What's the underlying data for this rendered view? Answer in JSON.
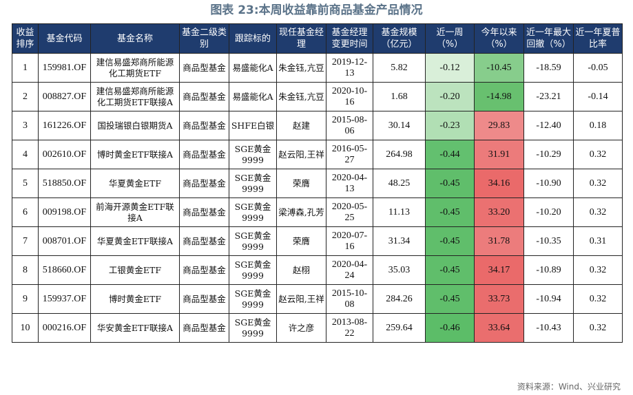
{
  "title": "图表 23:本周收益靠前商品基金产品情况",
  "headers": [
    "收益排序",
    "基金代码",
    "基金名称",
    "基金二级类别",
    "跟踪标的",
    "现任基金经理",
    "基金经理变更时间",
    "基金规模（亿元）",
    "近一周（%）",
    "今年以来（%）",
    "近一年最大回撤（%）",
    "近一年夏普比率"
  ],
  "rows": [
    {
      "rank": "1",
      "code": "159981.OF",
      "name": "建信易盛郑商所能源化工期货ETF",
      "category": "商品型基金",
      "tracking": "易盛能化A",
      "manager": "朱金钰,亢豆",
      "change_date": "2019-12-13",
      "scale": "5.82",
      "week": "-0.12",
      "ytd": "-10.45",
      "max_dd": "-18.59",
      "sharpe": "-0.05"
    },
    {
      "rank": "2",
      "code": "008827.OF",
      "name": "建信易盛郑商所能源化工期货ETF联接A",
      "category": "商品型基金",
      "tracking": "易盛能化A",
      "manager": "朱金钰,亢豆",
      "change_date": "2020-10-16",
      "scale": "1.68",
      "week": "-0.20",
      "ytd": "-14.98",
      "max_dd": "-23.21",
      "sharpe": "-0.14"
    },
    {
      "rank": "3",
      "code": "161226.OF",
      "name": "国投瑞银白银期货A",
      "category": "商品型基金",
      "tracking": "SHFE白银",
      "manager": "赵建",
      "change_date": "2015-08-06",
      "scale": "30.14",
      "week": "-0.23",
      "ytd": "29.83",
      "max_dd": "-12.40",
      "sharpe": "0.18"
    },
    {
      "rank": "4",
      "code": "002610.OF",
      "name": "博时黄金ETF联接A",
      "category": "商品型基金",
      "tracking": "SGE黄金9999",
      "manager": "赵云阳,王祥",
      "change_date": "2016-05-27",
      "scale": "264.98",
      "week": "-0.44",
      "ytd": "31.91",
      "max_dd": "-10.29",
      "sharpe": "0.32"
    },
    {
      "rank": "5",
      "code": "518850.OF",
      "name": "华夏黄金ETF",
      "category": "商品型基金",
      "tracking": "SGE黄金9999",
      "manager": "荣膺",
      "change_date": "2020-04-13",
      "scale": "48.25",
      "week": "-0.45",
      "ytd": "34.16",
      "max_dd": "-10.90",
      "sharpe": "0.32"
    },
    {
      "rank": "6",
      "code": "009198.OF",
      "name": "前海开源黄金ETF联接A",
      "category": "商品型基金",
      "tracking": "SGE黄金9999",
      "manager": "梁溥森,孔芳",
      "change_date": "2020-05-25",
      "scale": "11.13",
      "week": "-0.45",
      "ytd": "33.20",
      "max_dd": "-10.20",
      "sharpe": "0.32"
    },
    {
      "rank": "7",
      "code": "008701.OF",
      "name": "华夏黄金ETF联接A",
      "category": "商品型基金",
      "tracking": "SGE黄金9999",
      "manager": "荣膺",
      "change_date": "2020-07-16",
      "scale": "31.34",
      "week": "-0.45",
      "ytd": "31.78",
      "max_dd": "-10.35",
      "sharpe": "0.31"
    },
    {
      "rank": "8",
      "code": "518660.OF",
      "name": "工银黄金ETF",
      "category": "商品型基金",
      "tracking": "SGE黄金9999",
      "manager": "赵栩",
      "change_date": "2020-04-24",
      "scale": "35.03",
      "week": "-0.45",
      "ytd": "34.17",
      "max_dd": "-10.89",
      "sharpe": "0.32"
    },
    {
      "rank": "9",
      "code": "159937.OF",
      "name": "博时黄金ETF",
      "category": "商品型基金",
      "tracking": "SGE黄金9999",
      "manager": "赵云阳,王祥",
      "change_date": "2015-10-08",
      "scale": "284.26",
      "week": "-0.45",
      "ytd": "33.73",
      "max_dd": "-10.94",
      "sharpe": "0.32"
    },
    {
      "rank": "10",
      "code": "000216.OF",
      "name": "华安黄金ETF联接A",
      "category": "商品型基金",
      "tracking": "SGE黄金9999",
      "manager": "许之彦",
      "change_date": "2013-08-22",
      "scale": "259.64",
      "week": "-0.46",
      "ytd": "33.64",
      "max_dd": "-10.43",
      "sharpe": "0.32"
    }
  ],
  "source": "资料来源：Wind、兴业研究"
}
